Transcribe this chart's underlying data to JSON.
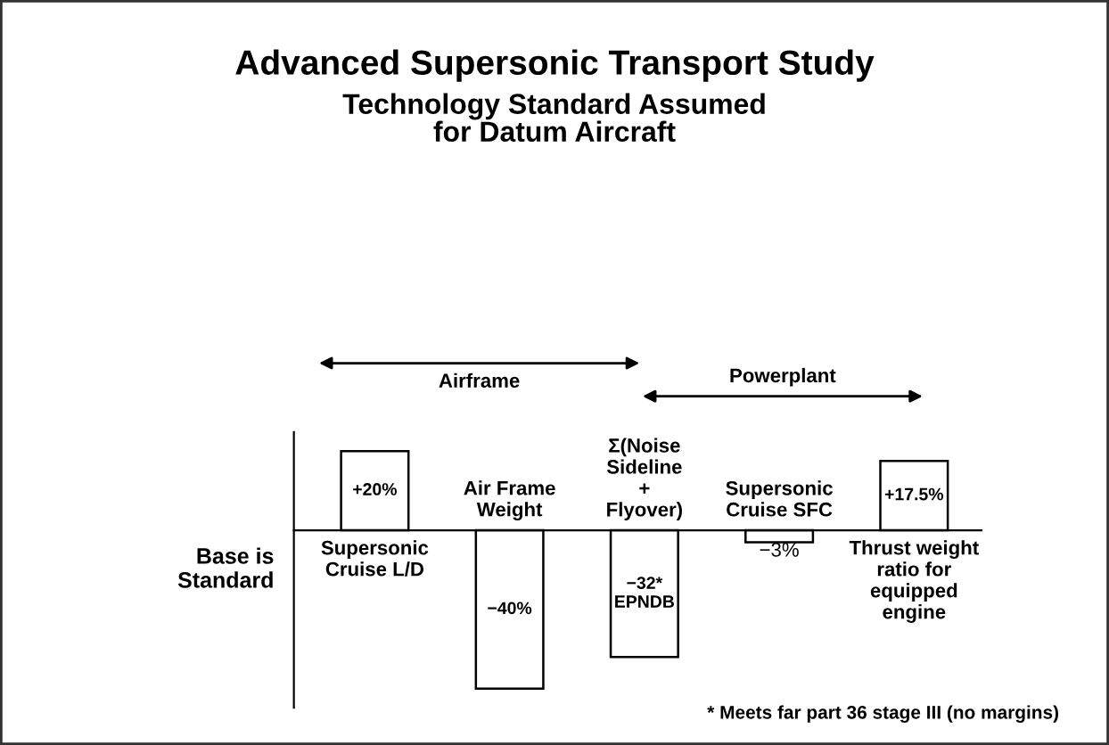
{
  "chart_data": {
    "type": "bar",
    "title": "Advanced Supersonic Transport Study",
    "subtitle": "Technology Standard Assumed\nfor Datum Aircraft",
    "ylabel": "Base is\nStandard",
    "categories": [
      "Supersonic\nCruise L/D",
      "Air Frame\nWeight",
      "Σ(Noise\nSideline\n+\nFlyover)",
      "Supersonic\nCruise SFC",
      "Thrust weight\nratio for\nequipped\nengine"
    ],
    "values": [
      20,
      -40,
      -32,
      -3,
      17.5
    ],
    "value_labels": [
      "+20%",
      "−40%",
      "−32*\nEPNDB",
      "−3%",
      "+17.5%"
    ],
    "color": "#ffffff",
    "annotations": [
      "Airframe",
      "Powerplant",
      "* Meets far part 36 stage III (no margins)"
    ],
    "legend": false
  }
}
